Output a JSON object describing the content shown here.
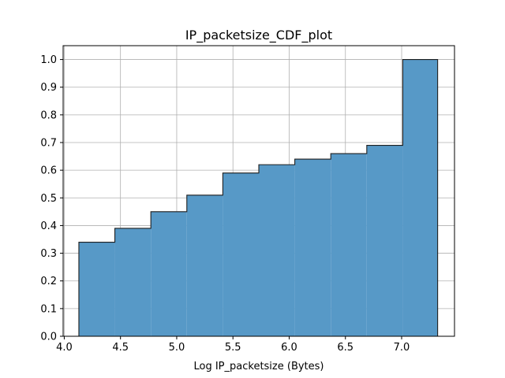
{
  "chart_data": {
    "type": "bar",
    "title": "IP_packetsize_CDF_plot",
    "xlabel": "Log IP_packetsize (Bytes)",
    "ylabel": "",
    "xlim": [
      3.99,
      7.47
    ],
    "ylim": [
      0.0,
      1.05
    ],
    "xticks": [
      4.0,
      4.5,
      5.0,
      5.5,
      6.0,
      6.5,
      7.0
    ],
    "xtick_labels": [
      "4.0",
      "4.5",
      "5.0",
      "5.5",
      "6.0",
      "6.5",
      "7.0"
    ],
    "yticks": [
      0.0,
      0.1,
      0.2,
      0.3,
      0.4,
      0.5,
      0.6,
      0.7,
      0.8,
      0.9,
      1.0
    ],
    "ytick_labels": [
      "0.0",
      "0.1",
      "0.2",
      "0.3",
      "0.4",
      "0.5",
      "0.6",
      "0.7",
      "0.8",
      "0.9",
      "1.0"
    ],
    "grid": true,
    "bin_edges": [
      4.13,
      4.45,
      4.77,
      5.09,
      5.41,
      5.73,
      6.05,
      6.37,
      6.69,
      7.01,
      7.32
    ],
    "values": [
      0.34,
      0.39,
      0.45,
      0.51,
      0.59,
      0.62,
      0.64,
      0.66,
      0.69,
      1.0
    ],
    "colors": {
      "bar_fill": "#5799c7",
      "bar_edge": "#1f1f1f",
      "grid": "#b0b0b0",
      "axis": "#000000"
    }
  }
}
